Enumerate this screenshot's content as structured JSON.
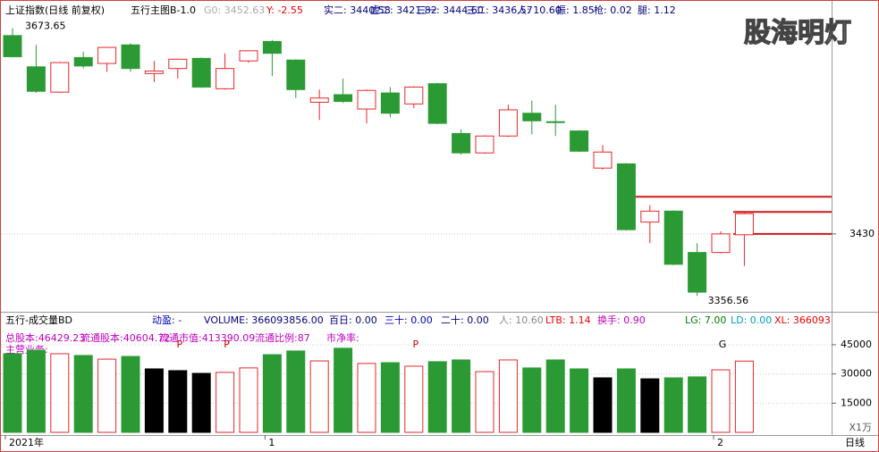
{
  "chart_data": [
    {
      "type": "candlestick",
      "title": "上证指数(日线 前复权)",
      "indicators": [
        "五行主图B-1.0",
        "G0: 3452.63",
        "Y: -2.55",
        "实二: 3440.58",
        "虚二: 3421.82",
        "三一: 3444.60",
        "三二: 3436.57",
        "人: 10.60",
        "振: 1.85",
        "枪: 0.02",
        "腿: 1.12"
      ],
      "watermark": "股海明灯",
      "categories": [
        "2021年",
        null,
        null,
        null,
        null,
        null,
        null,
        null,
        null,
        null,
        null,
        "1",
        null,
        null,
        null,
        null,
        null,
        null,
        null,
        null,
        null,
        null,
        null,
        null,
        null,
        null,
        null,
        null,
        null,
        null,
        "2",
        null
      ],
      "open": [
        3665,
        3628,
        3598,
        3639,
        3632,
        3654,
        3620,
        3626,
        3638,
        3602,
        3635,
        3658,
        3636,
        3586,
        3595,
        3578,
        3597,
        3584,
        3608,
        3549,
        3526,
        3546,
        3573,
        3563,
        3552,
        3508,
        3513,
        3444,
        3457,
        3408,
        3408,
        3429
      ],
      "high": [
        3673.65,
        3654,
        3634,
        3646,
        3651,
        3656,
        3635,
        3637,
        3639,
        3644,
        3647,
        3660,
        3637,
        3601,
        3614,
        3601,
        3604,
        3605,
        3609,
        3554,
        3547,
        3583,
        3588,
        3583,
        3553,
        3535,
        3514,
        3464,
        3458,
        3419,
        3433,
        3455
      ],
      "low": [
        3639,
        3597,
        3597,
        3626,
        3622,
        3622,
        3610,
        3614,
        3603,
        3601,
        3633,
        3617,
        3591,
        3565,
        3585,
        3561,
        3568,
        3579,
        3560,
        3524,
        3525,
        3545,
        3548,
        3546,
        3527,
        3506,
        3434,
        3419,
        3393,
        3356.56,
        3407,
        3392
      ],
      "close": [
        3640,
        3599,
        3633,
        3629,
        3651,
        3626,
        3623,
        3637,
        3604,
        3626,
        3647,
        3644,
        3601,
        3591,
        3587,
        3600,
        3573,
        3604,
        3561,
        3526,
        3546,
        3577,
        3564,
        3562,
        3528,
        3527,
        3435,
        3457,
        3394,
        3361,
        3430,
        3454
      ],
      "annotations": [
        "3673.65",
        "3356.56"
      ],
      "levels": [
        3474,
        3456,
        3430
      ],
      "up_color": "#e8262b",
      "down_color": "#2c9a34",
      "level_color": "#d01818",
      "ylim": [
        3342,
        3686
      ],
      "yticks": [
        3430
      ]
    },
    {
      "type": "bar",
      "title": "五行-成交量BD",
      "indicators": [
        "动盈: -",
        "VOLUME: 366093856.00",
        "百日: 0.00",
        "三十: 0.00",
        "二十: 0.00",
        "人: 10.60",
        "LTB: 1.14",
        "换手: 0.90",
        "LG: 7.00",
        "LD: 0.00",
        "XL: 366093"
      ],
      "info": [
        "总股本:46429.23",
        "流通股本:40604.72",
        "流通市值:413390.09",
        "流通比例:87",
        "市净率:",
        "主营业务:"
      ],
      "markers": [
        null,
        null,
        null,
        null,
        null,
        null,
        null,
        "P",
        null,
        "P",
        null,
        null,
        null,
        null,
        null,
        null,
        null,
        "P",
        null,
        null,
        null,
        null,
        null,
        null,
        null,
        null,
        null,
        null,
        null,
        null,
        "G",
        null
      ],
      "values": [
        40400,
        42200,
        40400,
        39500,
        37600,
        39000,
        32600,
        31700,
        30300,
        30800,
        33100,
        39900,
        41800,
        36700,
        43200,
        35400,
        35800,
        34000,
        36300,
        37200,
        31200,
        37200,
        33100,
        37200,
        32600,
        28000,
        32600,
        27500,
        28000,
        28500,
        32100,
        36609
      ],
      "colors": [
        "#2c9a34",
        "#2c9a34",
        "#e8262b",
        "#2c9a34",
        "#e8262b",
        "#2c9a34",
        "#000000",
        "#000000",
        "#000000",
        "#e8262b",
        "#e8262b",
        "#2c9a34",
        "#2c9a34",
        "#e8262b",
        "#2c9a34",
        "#e8262b",
        "#2c9a34",
        "#e8262b",
        "#2c9a34",
        "#2c9a34",
        "#e8262b",
        "#e8262b",
        "#2c9a34",
        "#2c9a34",
        "#2c9a34",
        "#000000",
        "#2c9a34",
        "#000000",
        "#2c9a34",
        "#2c9a34",
        "#e8262b",
        "#e8262b"
      ],
      "unit_label": "X1万",
      "period_label": "日线",
      "ylim": [
        0,
        51400
      ],
      "yticks": [
        15000,
        30000,
        45000
      ]
    }
  ]
}
